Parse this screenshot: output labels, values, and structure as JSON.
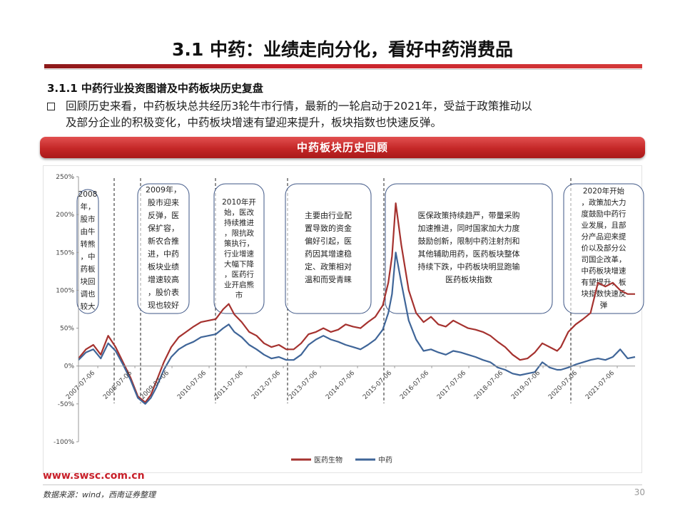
{
  "slide": {
    "title": "3.1 中药：业绩走向分化，看好中药消费品",
    "section_heading": "3.1.1 中药行业投资图谱及中药板块历史复盘",
    "bullet_line1": "回顾历史来看，中药板块总共经历3轮牛市行情，最新的一轮启动于2021年，受益于政策推动以",
    "bullet_line2": "及部分企业的积极变化，中药板块增速有望迎来提升，板块指数也快速反弹。",
    "banner": "中药板块历史回顾",
    "footer_url": "www.swsc.com.cn",
    "footer_source": "数据来源：wind，西南证券整理",
    "page_number": "30"
  },
  "colors": {
    "accent": "#c8202a",
    "series_med_bio": "#a5322f",
    "series_tcm": "#3f6598"
  },
  "chart_data": {
    "type": "line",
    "title": "",
    "xlabel": "",
    "ylabel": "",
    "ylim": [
      -100,
      250
    ],
    "y_ticks": [
      -100,
      -50,
      0,
      50,
      100,
      150,
      200,
      250
    ],
    "y_tick_labels": [
      "-100%",
      "-50%",
      "0%",
      "50%",
      "100%",
      "150%",
      "200%",
      "250%"
    ],
    "x_tick_labels": [
      "2007-07-06",
      "2008-07-06",
      "2009-07-06",
      "2010-07-06",
      "2011-07-06",
      "2012-07-06",
      "2013-07-06",
      "2014-07-06",
      "2015-07-06",
      "2016-07-06",
      "2017-07-06",
      "2018-07-06",
      "2019-07-06",
      "2020-07-06",
      "2021-07-06"
    ],
    "x_range": [
      2007.0,
      2022.0
    ],
    "legend_position": "bottom-center",
    "series": [
      {
        "name": "医药生物",
        "x": [
          2007.0,
          2007.2,
          2007.4,
          2007.6,
          2007.8,
          2008.0,
          2008.2,
          2008.4,
          2008.6,
          2008.8,
          2008.95,
          2009.1,
          2009.3,
          2009.5,
          2009.7,
          2009.9,
          2010.1,
          2010.3,
          2010.5,
          2010.7,
          2010.9,
          2011.05,
          2011.2,
          2011.4,
          2011.6,
          2011.8,
          2012.0,
          2012.2,
          2012.4,
          2012.6,
          2012.8,
          2013.0,
          2013.2,
          2013.4,
          2013.6,
          2013.8,
          2014.0,
          2014.2,
          2014.4,
          2014.6,
          2014.8,
          2015.0,
          2015.2,
          2015.35,
          2015.45,
          2015.55,
          2015.7,
          2015.9,
          2016.1,
          2016.3,
          2016.5,
          2016.7,
          2016.9,
          2017.1,
          2017.3,
          2017.5,
          2017.7,
          2017.9,
          2018.1,
          2018.3,
          2018.5,
          2018.7,
          2018.9,
          2019.1,
          2019.3,
          2019.5,
          2019.7,
          2019.9,
          2020.0,
          2020.2,
          2020.4,
          2020.6,
          2020.8,
          2021.0,
          2021.2,
          2021.4,
          2021.6,
          2021.8,
          2022.0
        ],
        "values": [
          10,
          22,
          28,
          15,
          40,
          25,
          5,
          -15,
          -40,
          -48,
          -38,
          -20,
          5,
          25,
          38,
          45,
          52,
          58,
          60,
          62,
          75,
          82,
          68,
          58,
          45,
          40,
          30,
          25,
          28,
          22,
          22,
          30,
          42,
          45,
          50,
          45,
          48,
          55,
          52,
          50,
          58,
          65,
          80,
          110,
          145,
          215,
          160,
          100,
          70,
          58,
          65,
          55,
          52,
          60,
          55,
          50,
          48,
          45,
          40,
          32,
          25,
          15,
          8,
          10,
          18,
          30,
          25,
          20,
          25,
          45,
          55,
          62,
          70,
          110,
          105,
          110,
          100,
          95,
          95
        ]
      },
      {
        "name": "中药",
        "x": [
          2007.0,
          2007.2,
          2007.4,
          2007.6,
          2007.8,
          2008.0,
          2008.2,
          2008.4,
          2008.6,
          2008.8,
          2008.95,
          2009.1,
          2009.3,
          2009.5,
          2009.7,
          2009.9,
          2010.1,
          2010.3,
          2010.5,
          2010.7,
          2010.9,
          2011.05,
          2011.2,
          2011.4,
          2011.6,
          2011.8,
          2012.0,
          2012.2,
          2012.4,
          2012.6,
          2012.8,
          2013.0,
          2013.2,
          2013.4,
          2013.6,
          2013.8,
          2014.0,
          2014.2,
          2014.4,
          2014.6,
          2014.8,
          2015.0,
          2015.2,
          2015.35,
          2015.45,
          2015.55,
          2015.7,
          2015.9,
          2016.1,
          2016.3,
          2016.5,
          2016.7,
          2016.9,
          2017.1,
          2017.3,
          2017.5,
          2017.7,
          2017.9,
          2018.1,
          2018.3,
          2018.5,
          2018.7,
          2018.9,
          2019.1,
          2019.3,
          2019.5,
          2019.7,
          2019.9,
          2020.0,
          2020.2,
          2020.4,
          2020.6,
          2020.8,
          2021.0,
          2021.2,
          2021.4,
          2021.6,
          2021.8,
          2022.0
        ],
        "values": [
          8,
          18,
          22,
          10,
          30,
          20,
          2,
          -18,
          -42,
          -50,
          -42,
          -28,
          -5,
          12,
          22,
          28,
          32,
          38,
          40,
          42,
          50,
          55,
          45,
          38,
          28,
          22,
          15,
          10,
          12,
          8,
          8,
          15,
          28,
          35,
          40,
          35,
          32,
          28,
          25,
          22,
          28,
          35,
          48,
          70,
          95,
          150,
          110,
          60,
          35,
          20,
          22,
          18,
          15,
          20,
          18,
          15,
          12,
          8,
          5,
          -2,
          -5,
          -10,
          -12,
          -10,
          -8,
          5,
          -2,
          -5,
          -5,
          -2,
          2,
          5,
          8,
          10,
          8,
          12,
          22,
          10,
          12
        ]
      }
    ],
    "annotations": [
      {
        "id": "2008",
        "lines": [
          "2008",
          "年，",
          "股市",
          "由牛",
          "转熊",
          "，中",
          "药板",
          "块回",
          "调也",
          "较大"
        ]
      },
      {
        "id": "2009",
        "lines": [
          "2009年，",
          "股市迎来",
          "反弹，医",
          "保扩容，",
          "新农合推",
          "进，中药",
          "板块业绩",
          "增速较高",
          "，股价表",
          "现也较好"
        ]
      },
      {
        "id": "2010",
        "lines": [
          "2010年开",
          "始，医改",
          "持续推进",
          "，限抗政",
          "策执行，",
          "行业增速",
          "大幅下降",
          "，医药行",
          "业开启熊",
          "市"
        ]
      },
      {
        "id": "2013",
        "lines": [
          "主要由行业配",
          "置导致的资金",
          "偏好引起，医",
          "药因其增速稳",
          "定、政策相对",
          "温和而受青睐"
        ]
      },
      {
        "id": "2016",
        "lines": [
          "医保政策持续趋严，带量采购",
          "加速推进，同时国家加大力度",
          "鼓励创新，限制中药注射剂和",
          "其他辅助用药，医药板块整体",
          "持续下跌，中药板块明显跑输",
          "医药板块指数"
        ]
      },
      {
        "id": "2020",
        "lines": [
          "2020年开始",
          "，政策加大力",
          "度鼓励中药行",
          "业发展，且部",
          "分产品迎来提",
          "价以及部分公",
          "司国企改革，",
          "中药板块增速",
          "有望提升，板",
          "块指数快速反",
          "弹"
        ]
      }
    ]
  }
}
